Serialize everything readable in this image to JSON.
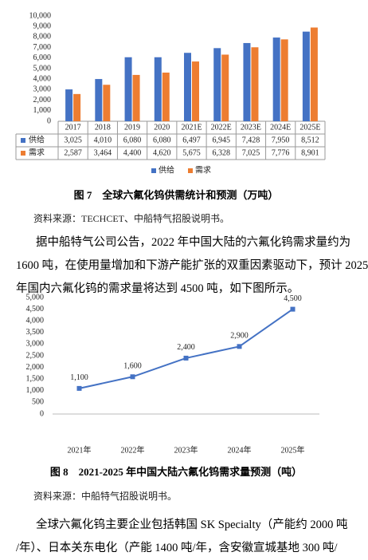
{
  "chart_data": [
    {
      "type": "bar",
      "title": "图 7　全球六氟化钨供需统计和预测（万吨）",
      "categories": [
        "2017",
        "2018",
        "2019",
        "2020",
        "2021E",
        "2022E",
        "2023E",
        "2024E",
        "2025E"
      ],
      "series": [
        {
          "name": "供给",
          "color": "#4472c4",
          "values": [
            3025,
            4010,
            6080,
            6080,
            6497,
            6945,
            7428,
            7950,
            8512
          ],
          "value_labels": [
            "3,025",
            "4,010",
            "6,080",
            "6,080",
            "6,497",
            "6,945",
            "7,428",
            "7,950",
            "8,512"
          ]
        },
        {
          "name": "需求",
          "color": "#ed7d31",
          "values": [
            2587,
            3464,
            4400,
            4620,
            5675,
            6328,
            7025,
            7776,
            8901
          ],
          "value_labels": [
            "2,587",
            "3,464",
            "4,400",
            "4,620",
            "5,675",
            "6,328",
            "7,025",
            "7,776",
            "8,901"
          ]
        }
      ],
      "ylim": [
        0,
        10000
      ],
      "yticks": [
        0,
        {
          "value": 1000,
          "label": "1,000"
        },
        {
          "value": 2000,
          "label": "2,000"
        },
        {
          "value": 3000,
          "label": "3,000"
        },
        {
          "value": 4000,
          "label": "4,000"
        },
        {
          "value": 5000,
          "label": "5,000"
        },
        {
          "value": 6000,
          "label": "6,000"
        },
        {
          "value": 7000,
          "label": "7,000"
        },
        {
          "value": 8000,
          "label": "8,000"
        },
        {
          "value": 9000,
          "label": "9,000"
        },
        {
          "value": 10000,
          "label": "10,000"
        }
      ],
      "grid": false,
      "legend": "bottom"
    },
    {
      "type": "line",
      "title": "图 8　2021-2025 年中国大陆六氟化钨需求量预测（吨）",
      "categories": [
        "2021年",
        "2022年",
        "2023年",
        "2024年",
        "2025年"
      ],
      "values": [
        1100,
        1600,
        2400,
        2900,
        4500
      ],
      "value_labels": [
        "1,100",
        "1,600",
        "2,400",
        "2,900",
        "4,500"
      ],
      "color": "#4472c4",
      "ylim": [
        0,
        5000
      ],
      "yticks": [
        0,
        500,
        {
          "value": 1000,
          "label": "1,000"
        },
        {
          "value": 1500,
          "label": "1,500"
        },
        {
          "value": 2000,
          "label": "2,000"
        },
        {
          "value": 2500,
          "label": "2,500"
        },
        {
          "value": 3000,
          "label": "3,000"
        },
        {
          "value": 3500,
          "label": "3,500"
        },
        {
          "value": 4000,
          "label": "4,000"
        },
        {
          "value": 4500,
          "label": "4,500"
        },
        {
          "value": 5000,
          "label": "5,000"
        }
      ],
      "grid": false
    }
  ],
  "document": {
    "source_1": "资料来源：TECHCET、中船特气招股说明书。",
    "paragraph_1": [
      "据中船特气公司公告，2022 年中国大陆的六氟化钨需求量约为",
      "1600 吨，在使用量增加和下游产能扩张的双重因素驱动下，预计 2025",
      "年国内六氟化钨的需求量将达到 4500 吨，如下图所示。"
    ],
    "source_2": "资料来源：中船特气招股说明书。",
    "paragraph_2": [
      "全球六氟化钨主要企业包括韩国 SK Specialty（产能约 2000 吨",
      "/年）、日本关东电化（产能 1400 吨/年，含安徽宣城基地 300 吨/"
    ]
  }
}
